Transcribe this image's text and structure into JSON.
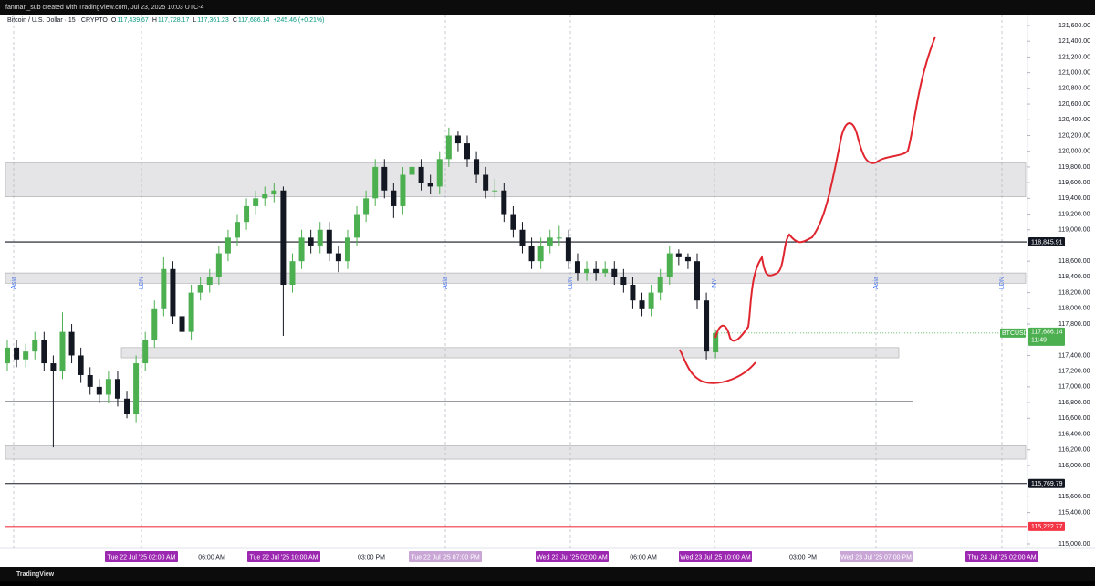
{
  "header": {
    "text": "fanman_sub created with TradingView.com, Jul 23, 2025 10:03 UTC-4"
  },
  "footer": {
    "brand": "TradingView"
  },
  "chart_data": {
    "type": "candlestick",
    "legend": {
      "symbol": "Bitcoin / U.S. Dollar · 15 · CRYPTO",
      "o": "O",
      "open": "117,439.67",
      "h": "H",
      "high": "117,728.17",
      "l": "L",
      "low": "117,361.23",
      "c": "C",
      "close": "117,686.14",
      "change": "+245.46 (+0.21%)"
    },
    "open": [
      117300,
      117500,
      117350,
      117450,
      117600,
      117300,
      117200,
      117700,
      117400,
      117150,
      117000,
      116900,
      117100,
      116850,
      116650,
      117300,
      117600,
      118000,
      118500,
      117900,
      117700,
      118200,
      118300,
      118400,
      118700,
      118900,
      119100,
      119300,
      119400,
      119450,
      119500,
      118300,
      118600,
      118900,
      118800,
      119000,
      118700,
      118600,
      118900,
      119200,
      119400,
      119800,
      119500,
      119300,
      119700,
      119800,
      119600,
      119550,
      119900,
      120200,
      120100,
      119900,
      119700,
      119500,
      119500,
      119200,
      119000,
      118800,
      118600,
      118800,
      118900,
      118900,
      118600,
      118450,
      118500,
      118450,
      118500,
      118400,
      118300,
      118100,
      118000,
      118200,
      118400,
      118700,
      118650,
      118600,
      118100,
      117439.67
    ],
    "high": [
      117600,
      117600,
      117550,
      117700,
      117700,
      117400,
      117950,
      117800,
      117500,
      117250,
      117100,
      117200,
      117200,
      116950,
      117400,
      117700,
      118100,
      118650,
      118600,
      118000,
      118300,
      118400,
      118500,
      118800,
      119000,
      119200,
      119400,
      119500,
      119550,
      119600,
      119550,
      118700,
      119000,
      119000,
      119100,
      119100,
      118800,
      119000,
      119300,
      119500,
      119900,
      119900,
      119600,
      119800,
      119900,
      119900,
      119700,
      120000,
      120300,
      120250,
      120200,
      120000,
      119800,
      119650,
      119600,
      119300,
      119100,
      118900,
      118900,
      119000,
      119050,
      119000,
      118700,
      118600,
      118600,
      118600,
      118600,
      118500,
      118400,
      118200,
      118300,
      118500,
      118800,
      118750,
      118700,
      118700,
      118200,
      117728.17
    ],
    "low": [
      117200,
      117250,
      117250,
      117350,
      117200,
      116230,
      117100,
      117300,
      117050,
      116900,
      116800,
      116800,
      116750,
      116600,
      116550,
      117200,
      117500,
      117900,
      117800,
      117600,
      117600,
      118100,
      118200,
      118300,
      118600,
      118800,
      119000,
      119200,
      119300,
      119350,
      117650,
      118200,
      118500,
      118700,
      118700,
      118600,
      118460,
      118500,
      118800,
      119100,
      119300,
      119400,
      119150,
      119200,
      119600,
      119500,
      119450,
      119450,
      119800,
      120000,
      119800,
      119600,
      119400,
      119400,
      119100,
      118900,
      118700,
      118500,
      118500,
      118700,
      118800,
      118500,
      118350,
      118350,
      118350,
      118400,
      118300,
      118200,
      118000,
      117900,
      117900,
      118100,
      118300,
      118550,
      118500,
      118000,
      117350,
      117361.23
    ],
    "close": [
      117500,
      117350,
      117450,
      117600,
      117300,
      117200,
      117700,
      117400,
      117150,
      117000,
      116900,
      117100,
      116850,
      116650,
      117300,
      117600,
      118000,
      118500,
      117900,
      117700,
      118200,
      118300,
      118400,
      118700,
      118900,
      119100,
      119300,
      119400,
      119450,
      119500,
      118300,
      118600,
      118900,
      118800,
      119000,
      118700,
      118600,
      118900,
      119200,
      119400,
      119800,
      119500,
      119300,
      119700,
      119800,
      119600,
      119550,
      119900,
      120200,
      120100,
      119900,
      119700,
      119500,
      119500,
      119200,
      119000,
      118800,
      118600,
      118800,
      118900,
      118900,
      118600,
      118450,
      118500,
      118450,
      118500,
      118400,
      118300,
      118100,
      118000,
      118200,
      118400,
      118700,
      118650,
      118600,
      118100,
      117450,
      117686.14
    ],
    "up_color": "#4caf50",
    "down_color": "#131722",
    "ylim": [
      115000,
      121600
    ],
    "yticks": [
      {
        "value": 121600,
        "label": "121,600.00"
      },
      {
        "value": 121400,
        "label": "121,400.00"
      },
      {
        "value": 121200,
        "label": "121,200.00"
      },
      {
        "value": 121000,
        "label": "121,000.00"
      },
      {
        "value": 120800,
        "label": "120,800.00"
      },
      {
        "value": 120600,
        "label": "120,600.00"
      },
      {
        "value": 120400,
        "label": "120,400.00"
      },
      {
        "value": 120200,
        "label": "120,200.00"
      },
      {
        "value": 120000,
        "label": "120,000.00"
      },
      {
        "value": 119800,
        "label": "119,800.00"
      },
      {
        "value": 119600,
        "label": "119,600.00"
      },
      {
        "value": 119400,
        "label": "119,400.00"
      },
      {
        "value": 119200,
        "label": "119,200.00"
      },
      {
        "value": 119000,
        "label": "119,000.00"
      },
      {
        "value": 118600,
        "label": "118,600.00"
      },
      {
        "value": 118400,
        "label": "118,400.00"
      },
      {
        "value": 118200,
        "label": "118,200.00"
      },
      {
        "value": 118000,
        "label": "118,000.00"
      },
      {
        "value": 117800,
        "label": "117,800.00"
      },
      {
        "value": 117400,
        "label": "117,400.00"
      },
      {
        "value": 117200,
        "label": "117,200.00"
      },
      {
        "value": 117000,
        "label": "117,000.00"
      },
      {
        "value": 116800,
        "label": "116,800.00"
      },
      {
        "value": 116600,
        "label": "116,600.00"
      },
      {
        "value": 116400,
        "label": "116,400.00"
      },
      {
        "value": 116200,
        "label": "116,200.00"
      },
      {
        "value": 116000,
        "label": "116,000.00"
      },
      {
        "value": 115600,
        "label": "115,600.00"
      },
      {
        "value": 115400,
        "label": "115,400.00"
      },
      {
        "value": 115000,
        "label": "115,000.00"
      }
    ],
    "zones": [
      [
        119850,
        119420
      ],
      [
        118450,
        118320
      ],
      [
        117500,
        117370
      ],
      [
        116250,
        116080
      ]
    ],
    "levels": [
      {
        "value": 118845.91,
        "label": "118,845.91",
        "color": "#131722"
      },
      {
        "value": 115769.79,
        "label": "115,769.79",
        "color": "#131722"
      },
      {
        "value": 115222.77,
        "label": "115,222.77",
        "color": "#f23645"
      }
    ],
    "lines": [
      116820
    ],
    "last": {
      "symbol": "BTCUSD",
      "price_label": "117,686.14",
      "countdown": "11:49"
    },
    "sessions": [
      "Asia",
      "LDN",
      "Asia",
      "LDN",
      "NY",
      "Asia",
      "LDN"
    ],
    "time_labels": [
      "Tue 22 Jul '25  02:00 AM",
      "06:00 AM",
      "Tue 22 Jul '25  10:00 AM",
      "03:00 PM",
      "Tue 22 Jul '25  07:00 PM",
      "Wed 23 Jul '25  02:00 AM",
      "06:00 AM",
      "Wed 23 Jul '25  10:00 AM",
      "03:00 PM",
      "Wed 23 Jul '25  07:00 PM",
      "Thu 24 Jul '25  02:00 AM"
    ]
  }
}
